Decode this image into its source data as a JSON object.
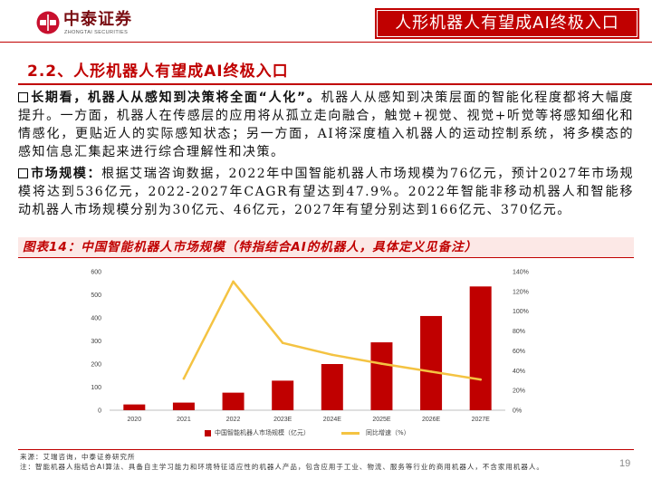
{
  "header": {
    "logo_text": "中泰证券",
    "logo_sub": "ZHONGTAI SECURITIES",
    "logo_icon": "zhongtai-emblem-icon",
    "banner": "人形机器人有望成AI终极入口"
  },
  "section_title": "2.2、人形机器人有望成AI终极入口",
  "paragraphs": [
    {
      "bullet_icon": "square-bullet-icon",
      "lead": "长期看，机器人从感知到决策将全面“人化”。",
      "body": "机器人从感知到决策层面的智能化程度都将大幅度提升。一方面，机器人在传感层的应用将从孤立走向融合，触觉+视觉、视觉+听觉等将感知细化和情感化，更贴近人的实际感知状态；另一方面，AI将深度植入机器人的运动控制系统，将多模态的感知信息汇集起来进行综合理解性和决策。"
    },
    {
      "bullet_icon": "square-bullet-icon",
      "lead": "市场规模：",
      "body": "根据艾瑞咨询数据，2022年中国智能机器人市场规模为76亿元，预计2027年市场规模将达到536亿元，2022-2027年CAGR有望达到47.9%。2022年智能非移动机器人和智能移动机器人市场规模分别为30亿元、46亿元，2027年有望分别达到166亿元、370亿元。"
    }
  ],
  "figure_title": "图表14：中国智能机器人市场规模（特指结合AI的机器人，具体定义见备注）",
  "chart_data": {
    "type": "bar",
    "categories": [
      "2020",
      "2021",
      "2022",
      "2023E",
      "2024E",
      "2025E",
      "2026E",
      "2027E"
    ],
    "series": [
      {
        "name": "中国智能机器人市场规模（亿元）",
        "type": "bar",
        "axis": "left",
        "color": "#C00000",
        "values": [
          25,
          33,
          76,
          128,
          200,
          294,
          408,
          536
        ]
      },
      {
        "name": "同比增速（%）",
        "type": "line",
        "axis": "right",
        "color": "#F4C342",
        "values": [
          null,
          32,
          130,
          68,
          56,
          47,
          39,
          31
        ]
      }
    ],
    "y_left": {
      "ylim": [
        0,
        600
      ],
      "ticks": [
        0,
        100,
        200,
        300,
        400,
        500,
        600
      ]
    },
    "y_right": {
      "ylim": [
        0,
        140
      ],
      "ticks": [
        0,
        20,
        40,
        60,
        80,
        100,
        120,
        140
      ],
      "tick_suffix": "%"
    },
    "grid": false,
    "legend_position": "bottom"
  },
  "footer": {
    "source": "来源：艾瑞咨询，中泰证券研究所",
    "note": "注：智能机器人指结合AI算法、具备自主学习能力和环境特征适应性的机器人产品，包含应用于工业、物流、服务等行业的商用机器人，不含家用机器人。",
    "page": "19"
  },
  "colors": {
    "accent": "#C00000",
    "band_background": "#FCE8E6",
    "logo_text": "#7A0E13"
  }
}
